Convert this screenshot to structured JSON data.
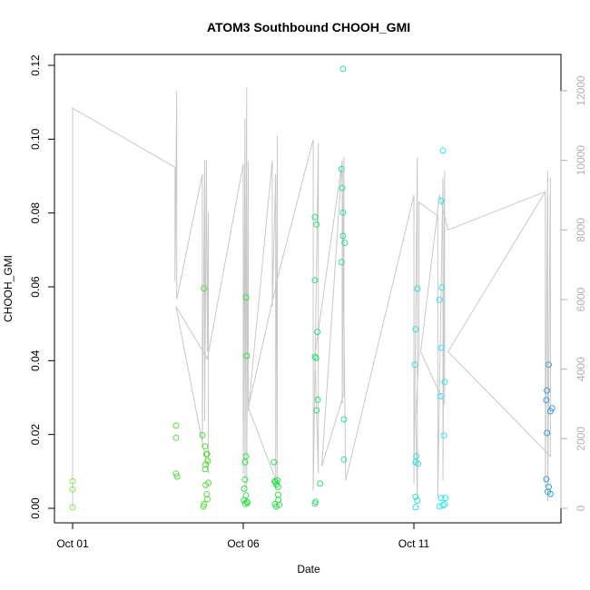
{
  "chart_data": {
    "type": "scatter",
    "title": "ATOM3 Southbound CHOOH_GMI",
    "xlabel": "Date",
    "ylabel": "CHOOH_GMI",
    "x_ticks": [
      {
        "label": "Oct 01",
        "day": 1
      },
      {
        "label": "Oct 06",
        "day": 6
      },
      {
        "label": "Oct 11",
        "day": 11
      }
    ],
    "xlim": [
      1,
      15.5
    ],
    "ylim": [
      0,
      0.12
    ],
    "y_ticks": [
      0.0,
      0.02,
      0.04,
      0.06,
      0.08,
      0.1,
      0.12
    ],
    "y_tick_labels": [
      "0.00",
      "0.02",
      "0.04",
      "0.06",
      "0.08",
      "0.10",
      "0.12"
    ],
    "y2lim": [
      0,
      12000
    ],
    "y2_ticks": [
      0,
      2000,
      4000,
      6000,
      8000,
      10000,
      12000
    ],
    "y2_tick_labels": [
      "0",
      "2000",
      "4000",
      "6000",
      "8000",
      "10000",
      "12000"
    ],
    "grid": false,
    "colors": {
      "altitude_line": "#c8c8c8",
      "axis": "#000000",
      "right_axis": "#b0b0b0"
    },
    "series": [
      {
        "color": "#8ae64a",
        "points": [
          [
            1.0,
            0.0073
          ],
          [
            1.0,
            0.0051
          ],
          [
            1.0,
            0.0003
          ]
        ]
      },
      {
        "color": "#55e03a",
        "points": [
          [
            4.03,
            0.0224
          ],
          [
            4.03,
            0.0191
          ],
          [
            4.03,
            0.0094
          ],
          [
            4.06,
            0.0086
          ],
          [
            4.8,
            0.0198
          ],
          [
            4.85,
            0.0596
          ],
          [
            4.88,
            0.0168
          ],
          [
            4.92,
            0.0146
          ],
          [
            4.94,
            0.0147
          ],
          [
            4.96,
            0.0128
          ],
          [
            4.9,
            0.0119
          ],
          [
            4.88,
            0.0106
          ],
          [
            4.98,
            0.0069
          ],
          [
            4.9,
            0.0063
          ],
          [
            4.93,
            0.0038
          ],
          [
            4.85,
            0.0011
          ],
          [
            4.83,
            0.0005
          ],
          [
            4.95,
            0.0025
          ]
        ]
      },
      {
        "color": "#2ee04a",
        "points": [
          [
            6.08,
            0.0571
          ],
          [
            6.1,
            0.0413
          ],
          [
            6.08,
            0.0141
          ],
          [
            6.05,
            0.0125
          ],
          [
            6.05,
            0.0078
          ],
          [
            6.03,
            0.0053
          ],
          [
            6.08,
            0.0035
          ],
          [
            6.1,
            0.0018
          ],
          [
            6.02,
            0.0022
          ],
          [
            6.06,
            0.0012
          ],
          [
            6.12,
            0.0015
          ],
          [
            6.9,
            0.0125
          ],
          [
            6.92,
            0.0073
          ],
          [
            6.95,
            0.0071
          ],
          [
            7.0,
            0.0076
          ],
          [
            6.97,
            0.0065
          ],
          [
            7.02,
            0.0058
          ],
          [
            7.02,
            0.0037
          ],
          [
            7.03,
            0.0023
          ],
          [
            6.93,
            0.0011
          ],
          [
            6.97,
            0.0005
          ],
          [
            7.05,
            0.0009
          ]
        ]
      },
      {
        "color": "#2ee07a",
        "points": [
          [
            8.1,
            0.0789
          ],
          [
            8.15,
            0.0769
          ],
          [
            8.1,
            0.0618
          ],
          [
            8.17,
            0.0478
          ],
          [
            8.1,
            0.0411
          ],
          [
            8.13,
            0.0407
          ],
          [
            8.18,
            0.0294
          ],
          [
            8.15,
            0.0265
          ],
          [
            8.25,
            0.0067
          ],
          [
            8.12,
            0.0018
          ],
          [
            8.1,
            0.0013
          ]
        ]
      },
      {
        "color": "#2ee0a8",
        "points": [
          [
            8.92,
            0.1191
          ],
          [
            8.88,
            0.0919
          ],
          [
            8.9,
            0.0868
          ],
          [
            8.92,
            0.0801
          ],
          [
            8.92,
            0.0738
          ],
          [
            8.97,
            0.0719
          ],
          [
            8.88,
            0.0667
          ],
          [
            8.95,
            0.0241
          ],
          [
            8.95,
            0.0132
          ]
        ]
      },
      {
        "color": "#2ee0d8",
        "points": [
          [
            11.05,
            0.0485
          ],
          [
            11.1,
            0.0595
          ],
          [
            11.03,
            0.0389
          ],
          [
            11.07,
            0.0141
          ],
          [
            11.05,
            0.0125
          ],
          [
            11.12,
            0.0121
          ],
          [
            11.05,
            0.0031
          ],
          [
            11.1,
            0.0021
          ],
          [
            11.05,
            0.0003
          ]
        ]
      },
      {
        "color": "#2ee8f0",
        "points": [
          [
            11.85,
            0.0969
          ],
          [
            11.8,
            0.0833
          ],
          [
            11.82,
            0.0598
          ],
          [
            11.75,
            0.0565
          ],
          [
            11.8,
            0.0435
          ],
          [
            11.9,
            0.0342
          ],
          [
            11.78,
            0.0304
          ],
          [
            11.88,
            0.0197
          ],
          [
            11.8,
            0.0028
          ],
          [
            11.92,
            0.0028
          ],
          [
            11.75,
            0.0005
          ],
          [
            11.85,
            0.0008
          ],
          [
            11.9,
            0.0011
          ]
        ]
      },
      {
        "color": "#3a9ce0",
        "points": [
          [
            14.95,
            0.0389
          ],
          [
            14.9,
            0.0319
          ],
          [
            14.88,
            0.0293
          ],
          [
            15.05,
            0.0271
          ],
          [
            15.0,
            0.0263
          ],
          [
            14.9,
            0.0204
          ],
          [
            14.88,
            0.0079
          ],
          [
            14.95,
            0.0058
          ],
          [
            14.92,
            0.0045
          ],
          [
            15.0,
            0.0039
          ]
        ]
      }
    ],
    "altitude_series": {
      "axis": "right",
      "color": "#c8c8c8",
      "points": [
        [
          1.0,
          0
        ],
        [
          1.0,
          11500
        ],
        [
          4.0,
          9800
        ],
        [
          4.0,
          6500
        ],
        [
          4.05,
          12000
        ],
        [
          4.05,
          6000
        ],
        [
          4.8,
          9600
        ],
        [
          4.8,
          1800
        ],
        [
          4.87,
          10000
        ],
        [
          4.87,
          2500
        ],
        [
          4.92,
          10000
        ],
        [
          4.95,
          4500
        ],
        [
          4.98,
          8500
        ],
        [
          4.98,
          1000
        ],
        [
          4.03,
          5800
        ],
        [
          4.95,
          4300
        ],
        [
          6.0,
          9900
        ],
        [
          6.0,
          1000
        ],
        [
          6.05,
          11200
        ],
        [
          6.05,
          500
        ],
        [
          6.1,
          12100
        ],
        [
          6.1,
          600
        ],
        [
          6.15,
          10000
        ],
        [
          6.15,
          2800
        ],
        [
          6.85,
          10000
        ],
        [
          6.85,
          5800
        ],
        [
          6.95,
          9600
        ],
        [
          6.95,
          500
        ],
        [
          7.0,
          10700
        ],
        [
          7.0,
          700
        ],
        [
          6.15,
          2900
        ],
        [
          7.05,
          6800
        ],
        [
          8.05,
          10600
        ],
        [
          8.05,
          500
        ],
        [
          8.2,
          10500
        ],
        [
          8.2,
          1000
        ],
        [
          8.1,
          4400
        ],
        [
          8.9,
          10000
        ],
        [
          8.9,
          3000
        ],
        [
          8.95,
          10100
        ],
        [
          8.95,
          3300
        ],
        [
          8.3,
          1200
        ],
        [
          8.9,
          10000
        ],
        [
          9.0,
          800
        ],
        [
          11.0,
          9000
        ],
        [
          11.0,
          700
        ],
        [
          11.1,
          10100
        ],
        [
          11.1,
          300
        ],
        [
          11.05,
          2600
        ],
        [
          11.15,
          4500
        ],
        [
          11.15,
          8800
        ],
        [
          11.7,
          8400
        ],
        [
          11.7,
          300
        ],
        [
          11.85,
          9500
        ],
        [
          11.85,
          800
        ],
        [
          11.9,
          9700
        ],
        [
          11.9,
          3000
        ],
        [
          11.2,
          4500
        ],
        [
          11.75,
          9000
        ],
        [
          12.0,
          8000
        ],
        [
          14.85,
          9100
        ],
        [
          14.85,
          600
        ],
        [
          14.92,
          9700
        ],
        [
          14.92,
          200
        ],
        [
          15.0,
          9500
        ],
        [
          15.0,
          1500
        ],
        [
          12.0,
          4500
        ],
        [
          14.85,
          9100
        ]
      ]
    }
  }
}
